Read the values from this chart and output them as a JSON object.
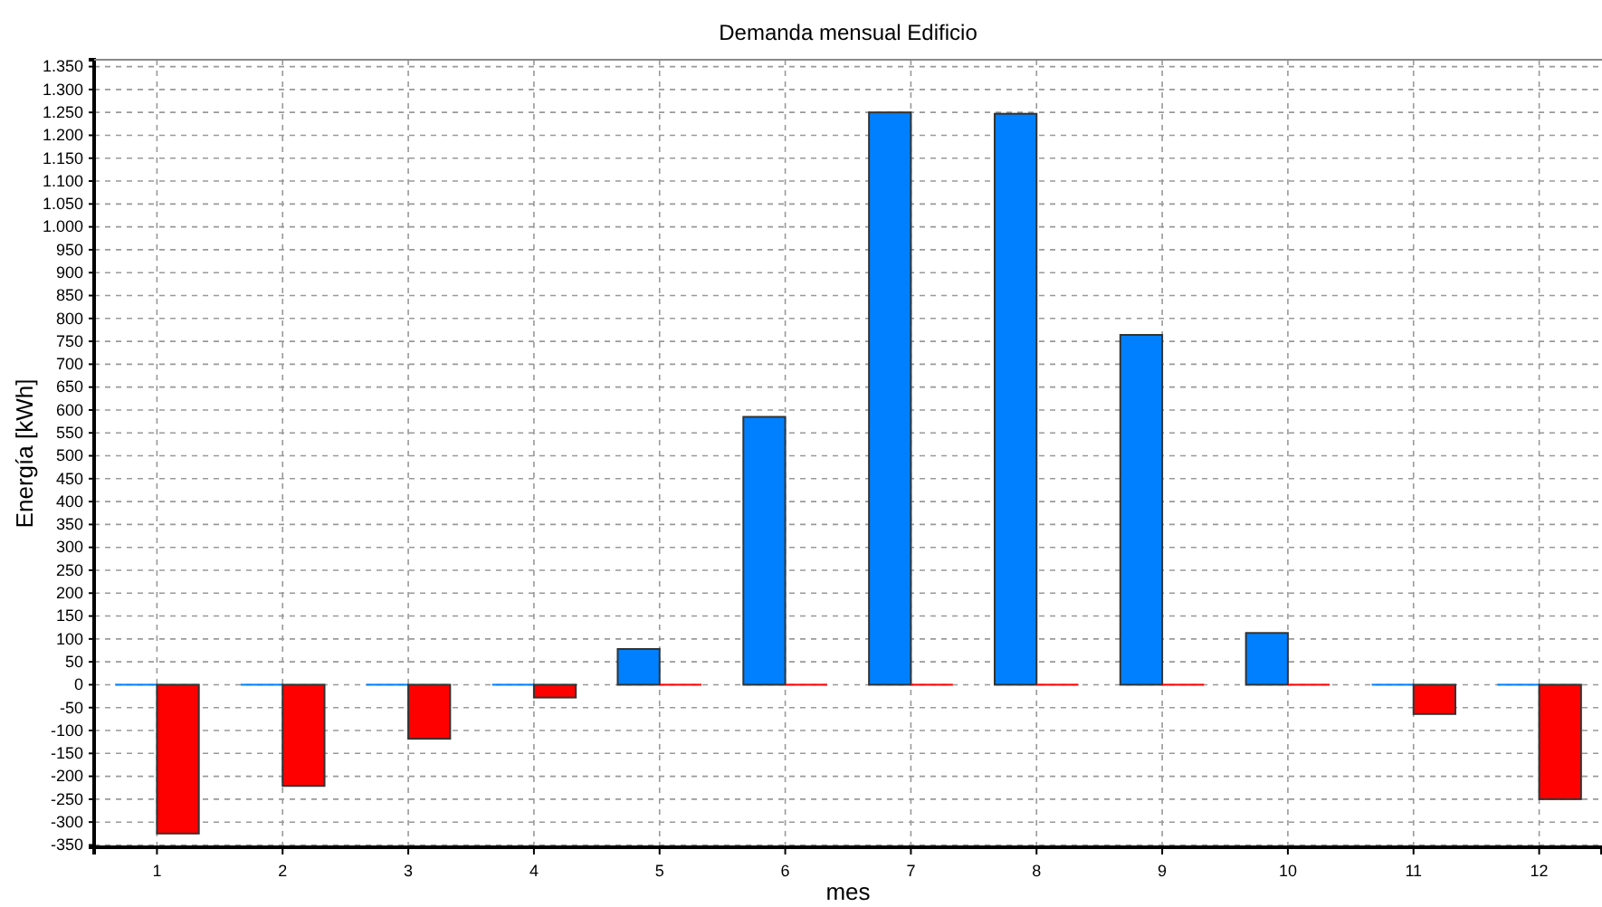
{
  "chart_data": {
    "type": "bar",
    "title": "Demanda mensual Edificio",
    "xlabel": "mes",
    "ylabel": "Energía [kWh]",
    "categories": [
      "1",
      "2",
      "3",
      "4",
      "5",
      "6",
      "7",
      "8",
      "9",
      "10",
      "11",
      "12"
    ],
    "series": [
      {
        "color": "#0080ff",
        "values": [
          0,
          0,
          0,
          0,
          78,
          585,
          1250,
          1247,
          764,
          113,
          0,
          0
        ]
      },
      {
        "color": "#ff0000",
        "values": [
          -325,
          -221,
          -118,
          -28,
          0,
          0,
          0,
          0,
          0,
          0,
          -64,
          -250
        ]
      }
    ],
    "ylim": [
      -355,
      1365
    ],
    "yticks": [
      -350,
      -300,
      -250,
      -200,
      -150,
      -100,
      -50,
      0,
      50,
      100,
      150,
      200,
      250,
      300,
      350,
      400,
      450,
      500,
      550,
      600,
      650,
      700,
      750,
      800,
      850,
      900,
      950,
      {
        "value": 1000,
        "label": "1.000"
      },
      {
        "value": 1050,
        "label": "1.050"
      },
      {
        "value": 1100,
        "label": "1.100"
      },
      {
        "value": 1150,
        "label": "1.150"
      },
      {
        "value": 1200,
        "label": "1.200"
      },
      {
        "value": 1250,
        "label": "1.250"
      },
      {
        "value": 1300,
        "label": "1.300"
      },
      {
        "value": 1350,
        "label": "1.350"
      }
    ],
    "grid": true
  }
}
